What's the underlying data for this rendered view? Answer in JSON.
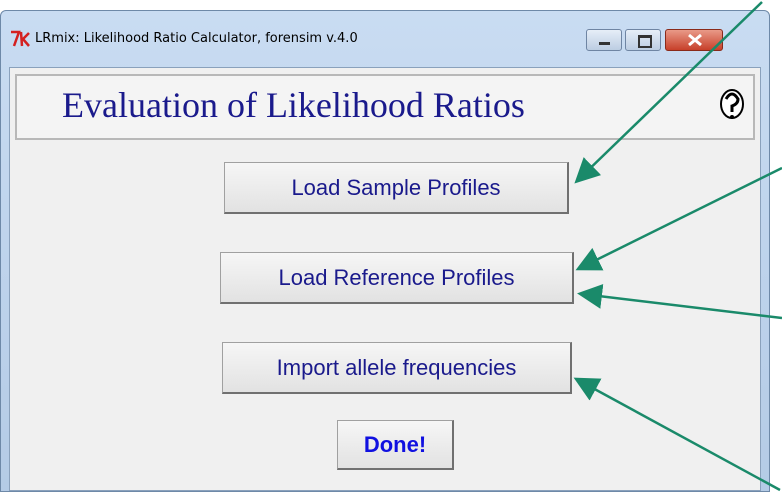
{
  "window": {
    "title": "LRmix: Likelihood Ratio Calculator, forensim v.4.0"
  },
  "header": {
    "title": "Evaluation of Likelihood Ratios"
  },
  "buttons": [
    "Load Sample Profiles",
    "Load Reference Profiles",
    "Import allele frequencies",
    "Done!"
  ]
}
